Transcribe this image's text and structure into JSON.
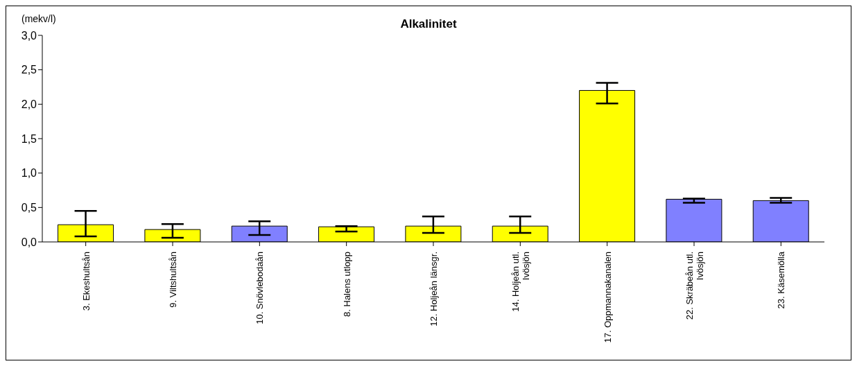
{
  "chart_data": {
    "type": "bar",
    "title": "Alkalinitet",
    "ylabel": "(mekv/l)",
    "categories": [
      "3. Ekeshultsån",
      "9. Viltshultsån",
      "10. Snövlebodaån",
      "8. Halens utlopp",
      "12. Holjeån länsgr.",
      "14. Holjeån utl. Ivösjön",
      "17. Oppmannakanalen",
      "22. Skräbeån utl. Ivösjön",
      "23. Käsemölla"
    ],
    "values": [
      0.25,
      0.18,
      0.23,
      0.22,
      0.23,
      0.23,
      2.2,
      0.62,
      0.6
    ],
    "colors": [
      "#ffff00",
      "#ffff00",
      "#8080ff",
      "#ffff00",
      "#ffff00",
      "#ffff00",
      "#ffff00",
      "#8080ff",
      "#8080ff"
    ],
    "errors": [
      [
        0.08,
        0.45
      ],
      [
        0.06,
        0.26
      ],
      [
        0.1,
        0.3
      ],
      [
        0.15,
        0.23
      ],
      [
        0.13,
        0.37
      ],
      [
        0.13,
        0.37
      ],
      [
        2.01,
        2.31
      ],
      [
        0.57,
        0.63
      ],
      [
        0.57,
        0.64
      ]
    ],
    "ylim": [
      0,
      3
    ],
    "yticks": [
      {
        "value": 0,
        "label": "0,0"
      },
      {
        "value": 0.5,
        "label": "0,5"
      },
      {
        "value": 1,
        "label": "1,0"
      },
      {
        "value": 1.5,
        "label": "1,5"
      },
      {
        "value": 2,
        "label": "2,0"
      },
      {
        "value": 2.5,
        "label": "2,5"
      },
      {
        "value": 3,
        "label": "3,0"
      }
    ],
    "grid": false,
    "legend": false
  }
}
